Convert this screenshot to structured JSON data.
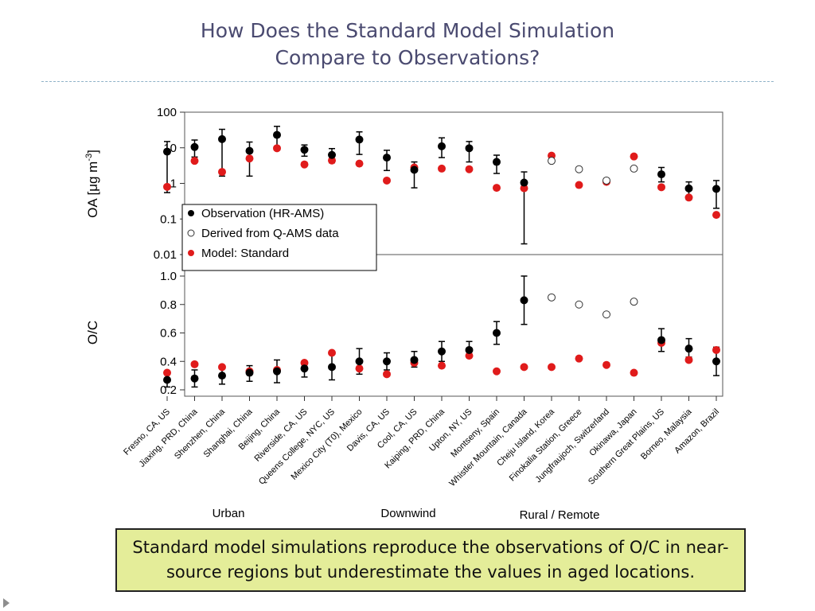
{
  "slide": {
    "title_line1": "How Does the Standard Model Simulation",
    "title_line2": "Compare to Observations?",
    "callout": "Standard model simulations reproduce the observations of O/C in near-source regions but underestimate the values in aged locations."
  },
  "colors": {
    "observation": "#000000",
    "model": "#e01b1b",
    "callout_bg": "#e4ed99",
    "title": "#4a4a70"
  },
  "chart_data": {
    "type": "scatter",
    "categories": [
      "Fresno, CA, US",
      "Jiaxing, PRD, China",
      "Shenzhen, China",
      "Shanghai, China",
      "Beijing, China",
      "Riverside, CA, US",
      "Queens College, NYC, US",
      "Mexico City (T0), Mexico",
      "Davis, CA, US",
      "Cool, CA, US",
      "Kaiping, PRD, China",
      "Upton, NY, US",
      "Montseny, Spain",
      "Whistler Mountain, Canada",
      "Cheju Island, Korea",
      "Finokalia Station, Greece",
      "Jungfraujoch, Switzerland",
      "Okinawa, Japan",
      "Southern Great Plains, US",
      "Borneo, Malaysia",
      "Amazon, Brazil"
    ],
    "group_labels": [
      "Urban",
      "Downwind",
      "Rural / Remote"
    ],
    "legend": [
      "Observation (HR-AMS)",
      "Derived from Q-AMS data",
      "Model: Standard"
    ],
    "panels": [
      {
        "ylabel_main": "OA [μg m",
        "ylabel_sup": "-3",
        "ylabel_end": "]",
        "scale": "log",
        "ylim": [
          0.01,
          100
        ],
        "ticks": [
          "0.01",
          "0.1",
          "1",
          "10",
          "100"
        ],
        "observation": [
          7.8,
          10.5,
          17.5,
          8.2,
          23,
          8.8,
          6.3,
          17,
          5.3,
          2.4,
          11,
          9.7,
          4,
          1.05,
          null,
          null,
          null,
          null,
          1.8,
          0.72,
          0.7
        ],
        "observation_low": [
          0.55,
          5.5,
          1.6,
          1.6,
          11,
          5.8,
          3.8,
          6.5,
          2.3,
          0.75,
          5.3,
          4,
          1.9,
          0.02,
          null,
          null,
          null,
          null,
          1.1,
          0.35,
          0.2
        ],
        "observation_high": [
          15,
          16.5,
          33,
          14.5,
          40,
          12,
          9.5,
          28,
          8.5,
          4,
          19,
          15,
          6.2,
          2.1,
          null,
          null,
          null,
          null,
          2.8,
          1.1,
          1.2
        ],
        "derived": [
          null,
          null,
          null,
          null,
          null,
          null,
          null,
          null,
          null,
          null,
          null,
          null,
          null,
          null,
          4.3,
          2.5,
          1.2,
          2.6,
          null,
          null,
          null
        ],
        "model": [
          0.8,
          4.3,
          2.1,
          5,
          9.7,
          3.4,
          4.4,
          3.6,
          1.2,
          2.8,
          2.6,
          2.5,
          0.75,
          0.73,
          6,
          0.9,
          1.1,
          5.7,
          0.78,
          0.4,
          0.13
        ]
      },
      {
        "ylabel": "O/C",
        "scale": "linear",
        "ylim": [
          0.2,
          1.0
        ],
        "ticks": [
          "0.2",
          "0.4",
          "0.6",
          "0.8",
          "1.0"
        ],
        "observation": [
          0.27,
          0.28,
          0.3,
          0.32,
          0.33,
          0.35,
          0.36,
          0.4,
          0.4,
          0.41,
          0.47,
          0.48,
          0.6,
          0.83,
          null,
          null,
          null,
          null,
          0.55,
          0.49,
          0.4
        ],
        "observation_low": [
          0.22,
          0.22,
          0.24,
          0.26,
          0.25,
          0.29,
          0.27,
          0.31,
          0.34,
          0.36,
          0.4,
          0.43,
          0.52,
          0.66,
          null,
          null,
          null,
          null,
          0.47,
          0.43,
          0.3
        ],
        "observation_high": [
          0.33,
          0.34,
          0.36,
          0.37,
          0.41,
          0.4,
          0.45,
          0.49,
          0.46,
          0.47,
          0.54,
          0.54,
          0.68,
          1.0,
          null,
          null,
          null,
          null,
          0.63,
          0.56,
          0.5
        ],
        "derived": [
          null,
          null,
          null,
          null,
          null,
          null,
          null,
          null,
          null,
          null,
          null,
          null,
          null,
          null,
          0.85,
          0.8,
          0.73,
          0.82,
          null,
          null,
          null
        ],
        "model": [
          0.32,
          0.38,
          0.36,
          0.33,
          0.34,
          0.39,
          0.46,
          0.35,
          0.31,
          0.39,
          0.37,
          0.44,
          0.33,
          0.36,
          0.36,
          0.42,
          0.375,
          0.32,
          0.53,
          0.41,
          0.48
        ]
      }
    ]
  }
}
